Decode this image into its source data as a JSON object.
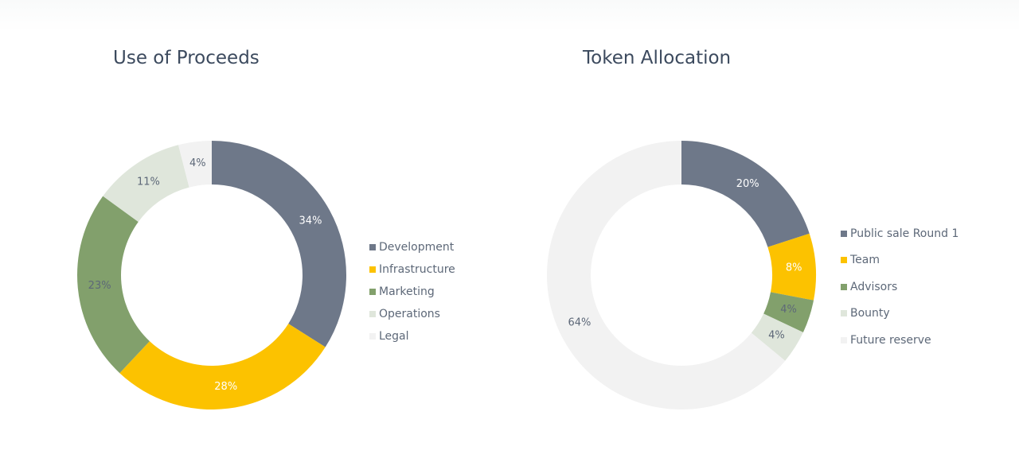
{
  "chart_data": [
    {
      "type": "pie",
      "title": "Use of Proceeds",
      "categories": [
        "Development",
        "Infrastructure",
        "Marketing",
        "Operations",
        "Legal"
      ],
      "values": [
        34,
        28,
        23,
        11,
        4
      ],
      "labels": [
        "34%",
        "28%",
        "23%",
        "11%",
        "4%"
      ],
      "colors": [
        "#6e7889",
        "#fcc200",
        "#82a06c",
        "#dfe6db",
        "#f2f2f2"
      ],
      "label_colors": [
        "#ffffff",
        "#ffffff",
        "#5d6878",
        "#5d6878",
        "#5d6878"
      ],
      "legend_position": "right",
      "style": "donut"
    },
    {
      "type": "pie",
      "title": "Token Allocation",
      "categories": [
        "Public sale Round 1",
        "Team",
        "Advisors",
        "Bounty",
        "Future reserve"
      ],
      "values": [
        20,
        8,
        4,
        4,
        64
      ],
      "labels": [
        "20%",
        "8%",
        "4%",
        "4%",
        "64%"
      ],
      "colors": [
        "#6e7889",
        "#fcc200",
        "#82a06c",
        "#dfe6db",
        "#f2f2f2"
      ],
      "label_colors": [
        "#ffffff",
        "#ffffff",
        "#5d6878",
        "#5d6878",
        "#5d6878"
      ],
      "legend_position": "right",
      "style": "donut"
    }
  ]
}
